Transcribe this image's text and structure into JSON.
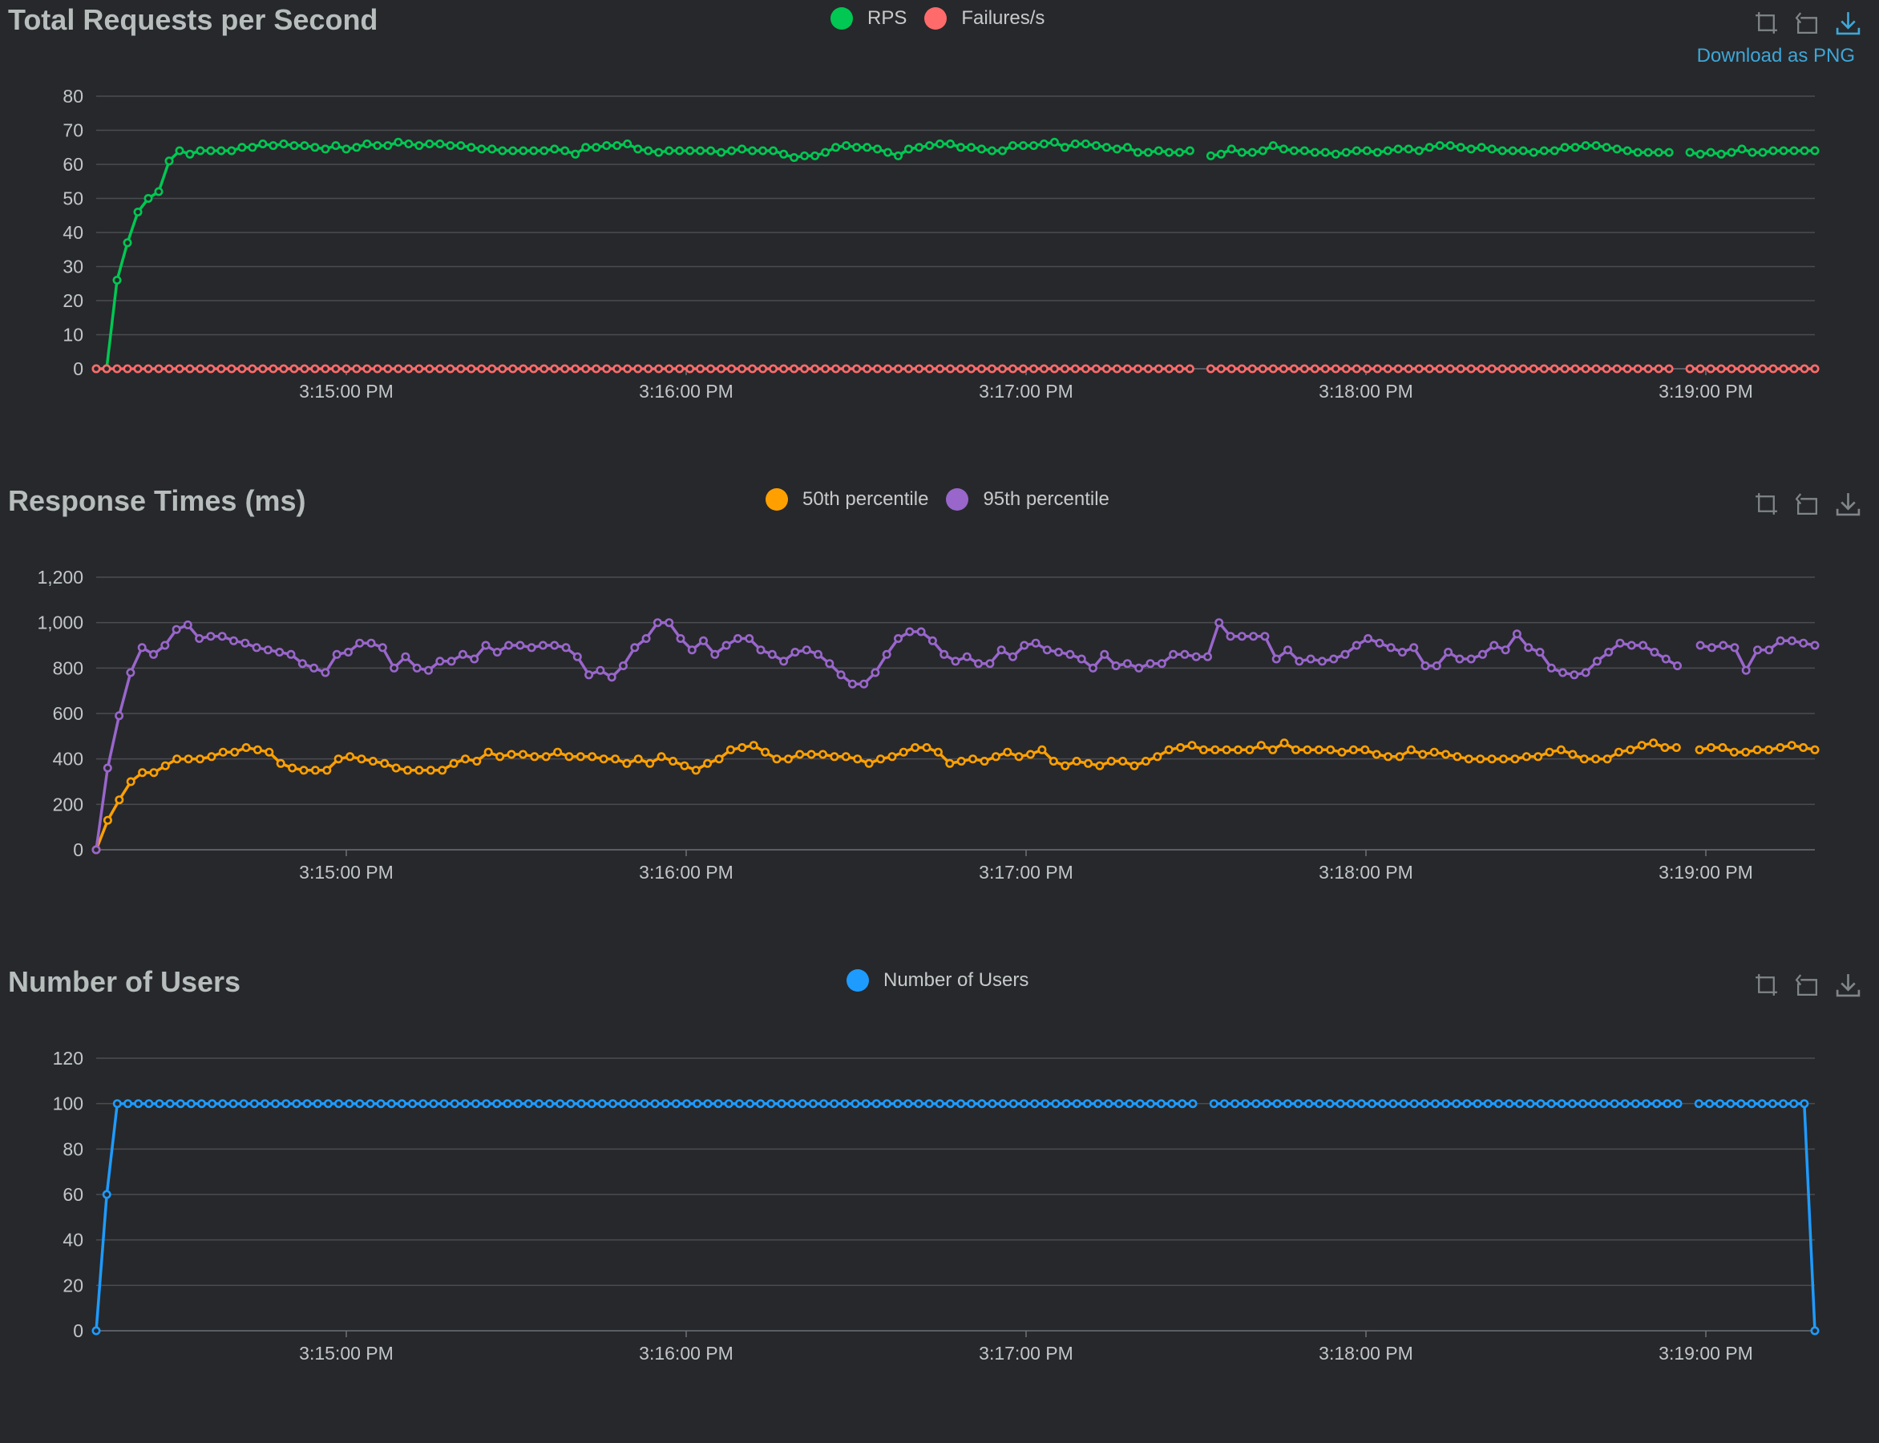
{
  "chart_data": [
    {
      "type": "line",
      "title": "Total Requests per Second",
      "x_ticks": [
        "3:15:00 PM",
        "3:16:00 PM",
        "3:17:00 PM",
        "3:18:00 PM",
        "3:19:00 PM"
      ],
      "x_range": [
        "3:14:16 PM",
        "3:19:20 PM"
      ],
      "ylim": [
        0,
        80
      ],
      "y_ticks": [
        "0",
        "10",
        "20",
        "30",
        "40",
        "50",
        "60",
        "70",
        "80"
      ],
      "legend": "top-center",
      "grid": true,
      "download_label": "Download as PNG",
      "series": [
        {
          "name": "RPS",
          "color": "#00c853",
          "values": [
            0,
            0,
            26,
            37,
            46,
            50,
            52,
            61,
            64,
            63,
            64,
            64,
            64,
            64,
            65,
            65,
            66,
            65.5,
            66,
            65.5,
            65.5,
            65,
            64.5,
            65.5,
            64.5,
            65,
            66,
            65.5,
            65.5,
            66.5,
            66,
            65.5,
            66,
            66,
            65.5,
            65.5,
            65,
            64.5,
            64.5,
            64,
            64,
            64,
            64,
            64,
            64.5,
            64,
            63,
            65,
            65,
            65.5,
            65.5,
            66,
            64.5,
            64,
            63.5,
            64,
            64,
            64,
            64,
            64,
            63.5,
            64,
            64.5,
            64,
            64,
            64,
            63,
            62,
            62.5,
            62.5,
            63.5,
            65,
            65.5,
            65,
            65,
            64.5,
            63.5,
            62.5,
            64.5,
            65,
            65.5,
            66,
            66,
            65,
            65,
            64.5,
            64,
            64,
            65.5,
            65.5,
            65.5,
            66,
            66.5,
            65,
            66,
            66,
            65.5,
            65,
            64.5,
            65,
            63.5,
            63.5,
            64,
            63.5,
            63.5,
            64,
            null,
            62.5,
            63,
            64.5,
            63.5,
            63.5,
            64,
            65.5,
            64.5,
            64,
            64,
            63.5,
            63.5,
            63,
            63.5,
            64,
            64,
            63.5,
            64,
            64.5,
            64.5,
            64,
            65,
            65.5,
            65.5,
            65,
            64.5,
            65,
            64.5,
            64,
            64,
            64,
            63.5,
            64,
            64,
            65,
            65,
            65.5,
            65.5,
            65,
            64.5,
            64,
            63.5,
            63.5,
            63.5,
            63.5,
            null,
            63.5,
            63,
            63.5,
            63,
            63.5,
            64.5,
            63.5,
            63.5,
            64,
            64,
            64,
            64,
            64
          ]
        },
        {
          "name": "Failures/s",
          "color": "#ff6b6b",
          "values": [
            0,
            0,
            0,
            0,
            0,
            0,
            0,
            0,
            0,
            0,
            0,
            0,
            0,
            0,
            0,
            0,
            0,
            0,
            0,
            0,
            0,
            0,
            0,
            0,
            0,
            0,
            0,
            0,
            0,
            0,
            0,
            0,
            0,
            0,
            0,
            0,
            0,
            0,
            0,
            0,
            0,
            0,
            0,
            0,
            0,
            0,
            0,
            0,
            0,
            0,
            0,
            0,
            0,
            0,
            0,
            0,
            0,
            0,
            0,
            0,
            0,
            0,
            0,
            0,
            0,
            0,
            0,
            0,
            0,
            0,
            0,
            0,
            0,
            0,
            0,
            0,
            0,
            0,
            0,
            0,
            0,
            0,
            0,
            0,
            0,
            0,
            0,
            0,
            0,
            0,
            0,
            0,
            0,
            0,
            0,
            0,
            0,
            0,
            0,
            0,
            0,
            0,
            0,
            0,
            0,
            0,
            null,
            0,
            0,
            0,
            0,
            0,
            0,
            0,
            0,
            0,
            0,
            0,
            0,
            0,
            0,
            0,
            0,
            0,
            0,
            0,
            0,
            0,
            0,
            0,
            0,
            0,
            0,
            0,
            0,
            0,
            0,
            0,
            0,
            0,
            0,
            0,
            0,
            0,
            0,
            0,
            0,
            0,
            0,
            0,
            0,
            0,
            null,
            0,
            0,
            0,
            0,
            0,
            0,
            0,
            0,
            0,
            0,
            0,
            0,
            0
          ]
        }
      ]
    },
    {
      "type": "line",
      "title": "Response Times (ms)",
      "x_ticks": [
        "3:15:00 PM",
        "3:16:00 PM",
        "3:17:00 PM",
        "3:18:00 PM",
        "3:19:00 PM"
      ],
      "x_range": [
        "3:14:16 PM",
        "3:19:20 PM"
      ],
      "ylim": [
        0,
        1200
      ],
      "y_ticks": [
        "0",
        "200",
        "400",
        "600",
        "800",
        "1,000",
        "1,200"
      ],
      "legend": "top-center",
      "grid": true,
      "series": [
        {
          "name": "50th percentile",
          "color": "#ffa000",
          "values": [
            0,
            130,
            220,
            300,
            340,
            340,
            370,
            400,
            400,
            400,
            410,
            430,
            430,
            450,
            440,
            430,
            380,
            360,
            350,
            350,
            350,
            400,
            410,
            400,
            390,
            380,
            360,
            350,
            350,
            350,
            350,
            380,
            400,
            390,
            430,
            410,
            420,
            420,
            410,
            410,
            430,
            410,
            410,
            410,
            400,
            400,
            380,
            400,
            380,
            410,
            390,
            370,
            350,
            380,
            400,
            440,
            450,
            460,
            430,
            400,
            400,
            420,
            420,
            420,
            410,
            410,
            400,
            380,
            400,
            410,
            430,
            450,
            450,
            430,
            380,
            390,
            400,
            390,
            410,
            430,
            410,
            420,
            440,
            390,
            370,
            390,
            380,
            370,
            390,
            390,
            370,
            390,
            410,
            440,
            450,
            460,
            440,
            440,
            440,
            440,
            440,
            460,
            440,
            470,
            440,
            440,
            440,
            440,
            430,
            440,
            440,
            420,
            410,
            410,
            440,
            420,
            430,
            420,
            410,
            400,
            400,
            400,
            400,
            400,
            410,
            410,
            430,
            440,
            420,
            400,
            400,
            400,
            430,
            440,
            460,
            470,
            450,
            450,
            null,
            440,
            450,
            450,
            430,
            430,
            440,
            440,
            450,
            460,
            450,
            440
          ]
        },
        {
          "name": "95th percentile",
          "color": "#9966cc",
          "values": [
            0,
            360,
            590,
            780,
            890,
            860,
            900,
            970,
            990,
            930,
            940,
            940,
            920,
            910,
            890,
            880,
            870,
            860,
            820,
            800,
            780,
            860,
            870,
            910,
            910,
            890,
            800,
            850,
            800,
            790,
            830,
            830,
            860,
            840,
            900,
            870,
            900,
            900,
            890,
            900,
            900,
            890,
            850,
            770,
            790,
            760,
            810,
            890,
            930,
            1000,
            1000,
            930,
            880,
            920,
            860,
            900,
            930,
            930,
            880,
            860,
            830,
            870,
            880,
            860,
            820,
            770,
            730,
            730,
            780,
            860,
            930,
            960,
            960,
            920,
            860,
            830,
            850,
            820,
            820,
            880,
            850,
            900,
            910,
            880,
            870,
            860,
            840,
            800,
            860,
            810,
            820,
            800,
            820,
            820,
            860,
            860,
            850,
            850,
            1000,
            940,
            940,
            940,
            940,
            840,
            880,
            830,
            840,
            830,
            840,
            860,
            900,
            930,
            910,
            890,
            870,
            890,
            810,
            810,
            870,
            840,
            840,
            860,
            900,
            880,
            950,
            890,
            870,
            800,
            780,
            770,
            780,
            830,
            870,
            910,
            900,
            900,
            870,
            840,
            810,
            null,
            900,
            890,
            900,
            890,
            790,
            880,
            880,
            920,
            920,
            910,
            900
          ]
        }
      ]
    },
    {
      "type": "line",
      "title": "Number of Users",
      "x_ticks": [
        "3:15:00 PM",
        "3:16:00 PM",
        "3:17:00 PM",
        "3:18:00 PM",
        "3:19:00 PM"
      ],
      "x_range": [
        "3:14:16 PM",
        "3:19:20 PM"
      ],
      "ylim": [
        0,
        120
      ],
      "y_ticks": [
        "0",
        "20",
        "40",
        "60",
        "80",
        "100",
        "120"
      ],
      "legend": "top-center",
      "grid": true,
      "series": [
        {
          "name": "Number of Users",
          "color": "#1e9bff",
          "values": [
            0,
            60,
            100,
            100,
            100,
            100,
            100,
            100,
            100,
            100,
            100,
            100,
            100,
            100,
            100,
            100,
            100,
            100,
            100,
            100,
            100,
            100,
            100,
            100,
            100,
            100,
            100,
            100,
            100,
            100,
            100,
            100,
            100,
            100,
            100,
            100,
            100,
            100,
            100,
            100,
            100,
            100,
            100,
            100,
            100,
            100,
            100,
            100,
            100,
            100,
            100,
            100,
            100,
            100,
            100,
            100,
            100,
            100,
            100,
            100,
            100,
            100,
            100,
            100,
            100,
            100,
            100,
            100,
            100,
            100,
            100,
            100,
            100,
            100,
            100,
            100,
            100,
            100,
            100,
            100,
            100,
            100,
            100,
            100,
            100,
            100,
            100,
            100,
            100,
            100,
            100,
            100,
            100,
            100,
            100,
            100,
            100,
            100,
            100,
            100,
            100,
            100,
            100,
            100,
            100,
            null,
            100,
            100,
            100,
            100,
            100,
            100,
            100,
            100,
            100,
            100,
            100,
            100,
            100,
            100,
            100,
            100,
            100,
            100,
            100,
            100,
            100,
            100,
            100,
            100,
            100,
            100,
            100,
            100,
            100,
            100,
            100,
            100,
            100,
            100,
            100,
            100,
            100,
            100,
            100,
            100,
            100,
            100,
            100,
            100,
            100,
            null,
            100,
            100,
            100,
            100,
            100,
            100,
            100,
            100,
            100,
            100,
            100,
            0
          ]
        }
      ]
    }
  ]
}
